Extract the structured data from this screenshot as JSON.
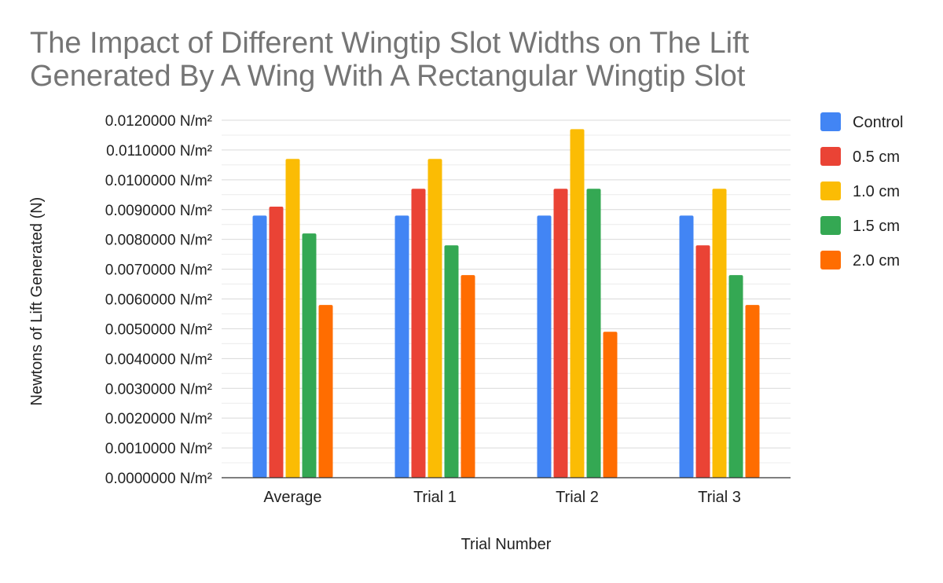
{
  "chart_data": {
    "type": "bar",
    "title": "The Impact of Different Wingtip Slot Widths on The Lift Generated By A Wing With A Rectangular Wingtip Slot",
    "xlabel": "Trial Number",
    "ylabel": "Newtons of Lift Generated (N)",
    "ylim": [
      0,
      0.012
    ],
    "y_tick_step": 0.001,
    "y_tick_suffix": " N/m²",
    "y_tick_decimals": 7,
    "grid": true,
    "legend_position": "right",
    "categories": [
      "Average",
      "Trial 1",
      "Trial 2",
      "Trial 3"
    ],
    "series": [
      {
        "name": "Control",
        "color": "#4285f4",
        "values": [
          0.0088,
          0.0088,
          0.0088,
          0.0088
        ]
      },
      {
        "name": "0.5 cm",
        "color": "#ea4335",
        "values": [
          0.0091,
          0.0097,
          0.0097,
          0.0078
        ]
      },
      {
        "name": "1.0 cm",
        "color": "#fbbc04",
        "values": [
          0.0107,
          0.0107,
          0.0117,
          0.0097
        ]
      },
      {
        "name": "1.5 cm",
        "color": "#34a853",
        "values": [
          0.0082,
          0.0078,
          0.0097,
          0.0068
        ]
      },
      {
        "name": "2.0 cm",
        "color": "#ff6d01",
        "values": [
          0.0058,
          0.0068,
          0.0049,
          0.0058
        ]
      }
    ]
  }
}
